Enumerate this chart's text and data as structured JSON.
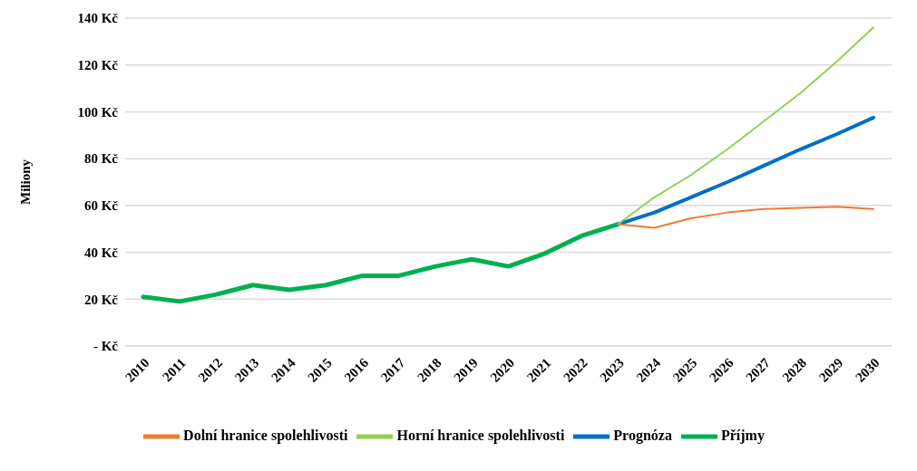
{
  "chart_data": {
    "type": "line",
    "ylabel": "Miliony",
    "categories": [
      "2010",
      "2011",
      "2012",
      "2013",
      "2014",
      "2015",
      "2016",
      "2017",
      "2018",
      "2019",
      "2020",
      "2021",
      "2022",
      "2023",
      "2024",
      "2025",
      "2026",
      "2027",
      "2028",
      "2029",
      "2030"
    ],
    "series": [
      {
        "name": "Příjmy",
        "color": "#00b050",
        "values": [
          21,
          19,
          22,
          26,
          24,
          26,
          30,
          30,
          34,
          37,
          34,
          39.5,
          47,
          52,
          null,
          null,
          null,
          null,
          null,
          null,
          null
        ]
      },
      {
        "name": "Prognóza",
        "color": "#0070c0",
        "values": [
          null,
          null,
          null,
          null,
          null,
          null,
          null,
          null,
          null,
          null,
          null,
          null,
          null,
          52,
          57,
          63.5,
          70,
          77,
          84,
          90.5,
          97.5
        ]
      },
      {
        "name": "Dolní hranice spolehlivosti",
        "color": "#ed7d31",
        "values": [
          null,
          null,
          null,
          null,
          null,
          null,
          null,
          null,
          null,
          null,
          null,
          null,
          null,
          52,
          50.5,
          54.5,
          57,
          58.5,
          59,
          59.5,
          58.5
        ]
      },
      {
        "name": "Horní hranice spolehlivosti",
        "color": "#92d050",
        "values": [
          null,
          null,
          null,
          null,
          null,
          null,
          null,
          null,
          null,
          null,
          null,
          null,
          null,
          52,
          63.5,
          73,
          84,
          96,
          108,
          121.5,
          136
        ]
      }
    ],
    "ylim": [
      0,
      140
    ],
    "yticks": [
      {
        "value": 0,
        "label": "-   Kč"
      },
      {
        "value": 20,
        "label": "20 Kč"
      },
      {
        "value": 40,
        "label": "40 Kč"
      },
      {
        "value": 60,
        "label": "60 Kč"
      },
      {
        "value": 80,
        "label": "80 Kč"
      },
      {
        "value": 100,
        "label": "100 Kč"
      },
      {
        "value": 120,
        "label": "120 Kč"
      },
      {
        "value": 140,
        "label": "140 Kč"
      }
    ],
    "grid": "y",
    "legend": "bottom",
    "marker": "none",
    "line_style": "solid"
  }
}
